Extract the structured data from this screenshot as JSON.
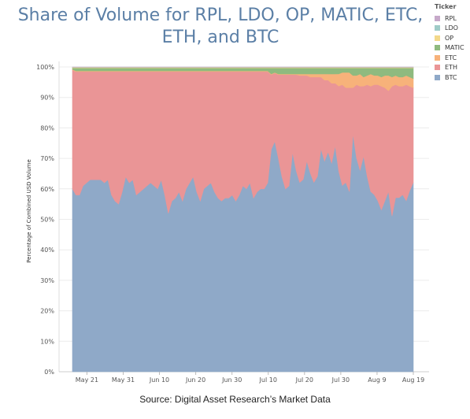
{
  "title": "Share of Volume for RPL, LDO, OP, MATIC, ETC, ETH, and BTC",
  "source": "Source: Digital Asset Research’s Market Data",
  "legend": {
    "title": "Ticker",
    "items": [
      {
        "label": "RPL",
        "color": "#c6a9c9"
      },
      {
        "label": "LDO",
        "color": "#9fcbc7"
      },
      {
        "label": "OP",
        "color": "#f3d88a"
      },
      {
        "label": "MATIC",
        "color": "#8fba7f"
      },
      {
        "label": "ETC",
        "color": "#f7b27a"
      },
      {
        "label": "ETH",
        "color": "#ea9596"
      },
      {
        "label": "BTC",
        "color": "#8fa9c8"
      }
    ]
  },
  "chart_data": {
    "type": "area",
    "stacked": true,
    "normalized": true,
    "title": "Share of Volume for RPL, LDO, OP, MATIC, ETC, ETH, and BTC",
    "ylabel": "Percentage of Combined USD Volume",
    "xlabel": "",
    "ylim": [
      0,
      100
    ],
    "y_ticks": [
      "0%",
      "10%",
      "20%",
      "30%",
      "40%",
      "50%",
      "60%",
      "70%",
      "80%",
      "90%",
      "100%"
    ],
    "x_ticks": [
      "May 21",
      "May 31",
      "Jun 10",
      "Jun 20",
      "Jun 30",
      "Jul 10",
      "Jul 20",
      "Jul 30",
      "Aug 9",
      "Aug 19"
    ],
    "x_start": "2023-05-17",
    "x_end": "2023-08-19",
    "grid": "horizontal",
    "legend_position": "right",
    "series_order_bottom_to_top": [
      "BTC",
      "ETH",
      "ETC",
      "MATIC",
      "OP",
      "LDO",
      "RPL"
    ],
    "series": [
      {
        "name": "BTC",
        "values": [
          60,
          58,
          58,
          61,
          62,
          63,
          63,
          63,
          63,
          62,
          63,
          58,
          56,
          55,
          59,
          64,
          62,
          63,
          58,
          59,
          60,
          61,
          62,
          61,
          60,
          63,
          58,
          52,
          56,
          57,
          59,
          56,
          60,
          62,
          64,
          59,
          56,
          60,
          61,
          62,
          59,
          57,
          56,
          57,
          57,
          58,
          56,
          58,
          61,
          60,
          62,
          57,
          59,
          60,
          60,
          62,
          73,
          76,
          70,
          64,
          60,
          61,
          72,
          66,
          62,
          63,
          69,
          65,
          62,
          64,
          73,
          69,
          72,
          68,
          74,
          66,
          61,
          62,
          59,
          78,
          70,
          66,
          71,
          64,
          59,
          58,
          56,
          53,
          56,
          59,
          51,
          57,
          57,
          58,
          56,
          59,
          62
        ]
      },
      {
        "name": "ETH",
        "values": [
          39,
          40.5,
          40.5,
          37.5,
          36.5,
          35.5,
          35.5,
          35.5,
          35.5,
          36.5,
          35.5,
          40.5,
          42.5,
          43.5,
          39.5,
          34.5,
          36.5,
          35.5,
          40.5,
          39.5,
          38.5,
          37.5,
          36.5,
          37.5,
          38.5,
          35.5,
          40.5,
          46.5,
          42.5,
          41.5,
          39.5,
          42.5,
          38.5,
          36.5,
          34.5,
          39.5,
          42.5,
          38.5,
          37.5,
          36.5,
          39.5,
          41.5,
          42.5,
          41.5,
          41.5,
          40.5,
          42.5,
          40.5,
          37.5,
          38.5,
          36.5,
          41.5,
          39.5,
          38.5,
          38.5,
          36.5,
          24.5,
          22.5,
          27.5,
          33.5,
          37.5,
          36.5,
          25.5,
          31.5,
          35,
          34,
          28,
          31.5,
          34.5,
          32.5,
          23.5,
          26.5,
          23.5,
          26,
          20.5,
          28,
          33,
          31,
          34,
          15,
          24,
          27.5,
          23,
          30,
          34.5,
          36,
          38,
          40.5,
          37,
          33,
          42.5,
          37,
          36.5,
          35.5,
          38,
          34,
          31
        ]
      },
      {
        "name": "ETC",
        "values": [
          0.2,
          0.2,
          0.2,
          0.2,
          0.2,
          0.2,
          0.2,
          0.2,
          0.2,
          0.2,
          0.2,
          0.2,
          0.2,
          0.2,
          0.2,
          0.2,
          0.2,
          0.2,
          0.2,
          0.2,
          0.2,
          0.2,
          0.2,
          0.2,
          0.2,
          0.2,
          0.2,
          0.2,
          0.2,
          0.2,
          0.2,
          0.2,
          0.2,
          0.2,
          0.2,
          0.2,
          0.2,
          0.2,
          0.2,
          0.2,
          0.2,
          0.2,
          0.2,
          0.2,
          0.2,
          0.2,
          0.2,
          0.2,
          0.2,
          0.2,
          0.2,
          0.2,
          0.2,
          0.2,
          0.2,
          0.2,
          0.2,
          0.2,
          0.2,
          0.2,
          0.2,
          0.2,
          0.2,
          0.2,
          0.5,
          0.5,
          0.5,
          1,
          1,
          1,
          1,
          2,
          2,
          3,
          3,
          4,
          4,
          5,
          5,
          4,
          3,
          4,
          3,
          3,
          4,
          3,
          3,
          3,
          4,
          5,
          3,
          3,
          3,
          3,
          3,
          3,
          3
        ]
      },
      {
        "name": "MATIC",
        "values": [
          0.5,
          1,
          1,
          1,
          1,
          1,
          1,
          1,
          1,
          1,
          1,
          1,
          1,
          1,
          1,
          1,
          1,
          1,
          1,
          1,
          1,
          1,
          1,
          1,
          1,
          1,
          1,
          1,
          1,
          1,
          1,
          1,
          1,
          1,
          1,
          1,
          1,
          1,
          1,
          1,
          1,
          1,
          1,
          1,
          1,
          1,
          1,
          1,
          1,
          1,
          1,
          1,
          1,
          1,
          1,
          1,
          2,
          1.5,
          2,
          2,
          2,
          2,
          2,
          2,
          2,
          2,
          2,
          2,
          2,
          2,
          2,
          2,
          2,
          2,
          2,
          2,
          1.5,
          1.5,
          1.5,
          2.5,
          2.5,
          2,
          3,
          2.5,
          2,
          2.5,
          2.5,
          3,
          2.5,
          2.5,
          3,
          2.5,
          3,
          3,
          2.5,
          3,
          3.5
        ]
      },
      {
        "name": "OP",
        "values": [
          0.2,
          0.2,
          0.2,
          0.2,
          0.2,
          0.2,
          0.2,
          0.2,
          0.2,
          0.2,
          0.2,
          0.2,
          0.2,
          0.2,
          0.2,
          0.2,
          0.2,
          0.2,
          0.2,
          0.2,
          0.2,
          0.2,
          0.2,
          0.2,
          0.2,
          0.2,
          0.2,
          0.2,
          0.2,
          0.2,
          0.2,
          0.2,
          0.2,
          0.2,
          0.2,
          0.2,
          0.2,
          0.2,
          0.2,
          0.2,
          0.2,
          0.2,
          0.2,
          0.2,
          0.2,
          0.2,
          0.2,
          0.2,
          0.2,
          0.2,
          0.2,
          0.2,
          0.2,
          0.2,
          0.2,
          0.2,
          0.2,
          0.2,
          0.2,
          0.2,
          0.2,
          0.2,
          0.2,
          0.2,
          0.2,
          0.2,
          0.2,
          0.2,
          0.2,
          0.2,
          0.2,
          0.2,
          0.2,
          0.2,
          0.2,
          0.2,
          0.2,
          0.2,
          0.2,
          0.2,
          0.2,
          0.2,
          0.2,
          0.2,
          0.2,
          0.2,
          0.2,
          0.2,
          0.2,
          0.2,
          0.2,
          0.2,
          0.2,
          0.2,
          0.2,
          0.2,
          0.2
        ]
      },
      {
        "name": "LDO",
        "values": [
          0.05,
          0.05,
          0.05,
          0.05,
          0.05,
          0.05,
          0.05,
          0.05,
          0.05,
          0.05,
          0.05,
          0.05,
          0.05,
          0.05,
          0.05,
          0.05,
          0.05,
          0.05,
          0.05,
          0.05,
          0.05,
          0.05,
          0.05,
          0.05,
          0.05,
          0.05,
          0.05,
          0.05,
          0.05,
          0.05,
          0.05,
          0.05,
          0.05,
          0.05,
          0.05,
          0.05,
          0.05,
          0.05,
          0.05,
          0.05,
          0.05,
          0.05,
          0.05,
          0.05,
          0.05,
          0.05,
          0.05,
          0.05,
          0.05,
          0.05,
          0.05,
          0.05,
          0.05,
          0.05,
          0.05,
          0.05,
          0.05,
          0.05,
          0.05,
          0.05,
          0.05,
          0.05,
          0.05,
          0.05,
          0.05,
          0.05,
          0.05,
          0.05,
          0.05,
          0.05,
          0.05,
          0.05,
          0.05,
          0.05,
          0.05,
          0.05,
          0.05,
          0.05,
          0.05,
          0.05,
          0.05,
          0.05,
          0.05,
          0.05,
          0.05,
          0.05,
          0.05,
          0.05,
          0.05,
          0.05,
          0.05,
          0.05,
          0.05,
          0.05,
          0.05,
          0.05,
          0.05
        ]
      },
      {
        "name": "RPL",
        "values": [
          0.05,
          0.05,
          0.05,
          0.05,
          0.05,
          0.05,
          0.05,
          0.05,
          0.05,
          0.05,
          0.05,
          0.05,
          0.05,
          0.05,
          0.05,
          0.05,
          0.05,
          0.05,
          0.05,
          0.05,
          0.05,
          0.05,
          0.05,
          0.05,
          0.05,
          0.05,
          0.05,
          0.05,
          0.05,
          0.05,
          0.05,
          0.05,
          0.05,
          0.05,
          0.05,
          0.05,
          0.05,
          0.05,
          0.05,
          0.05,
          0.05,
          0.05,
          0.05,
          0.05,
          0.05,
          0.05,
          0.05,
          0.05,
          0.05,
          0.05,
          0.05,
          0.05,
          0.05,
          0.05,
          0.05,
          0.05,
          0.05,
          0.05,
          0.05,
          0.05,
          0.05,
          0.05,
          0.05,
          0.05,
          0.05,
          0.05,
          0.05,
          0.05,
          0.05,
          0.05,
          0.05,
          0.05,
          0.05,
          0.05,
          0.05,
          0.05,
          0.05,
          0.05,
          0.05,
          0.05,
          0.05,
          0.05,
          0.05,
          0.05,
          0.05,
          0.05,
          0.05,
          0.05,
          0.05,
          0.05,
          0.05,
          0.05,
          0.05,
          0.05,
          0.05,
          0.05,
          0.05
        ]
      }
    ]
  }
}
